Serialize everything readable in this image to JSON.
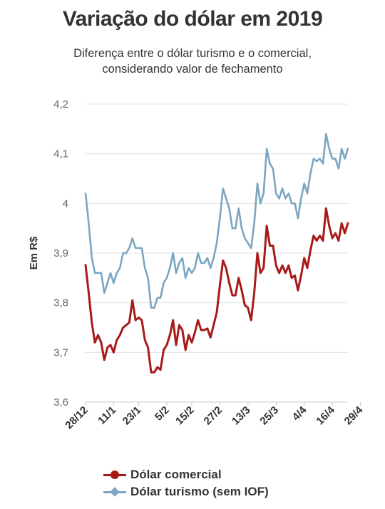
{
  "chart_data": {
    "type": "line",
    "title": "Variação do dólar em 2019",
    "subtitle_lines": [
      "Diferença entre o dólar turismo e o comercial,",
      "considerando valor de fechamento"
    ],
    "ylabel": "Em R$",
    "xlabel": "",
    "ylim": [
      3.6,
      4.2
    ],
    "yticks": [
      3.6,
      3.7,
      3.8,
      3.9,
      4.0,
      4.1,
      4.2
    ],
    "ytick_labels": [
      "3,6",
      "3,7",
      "3,8",
      "3,9",
      "4",
      "4,1",
      "4,2"
    ],
    "xtick_labels": [
      "28/12",
      "11/1",
      "23/1",
      "5/2",
      "15/2",
      "27/2",
      "13/3",
      "25/3",
      "4/4",
      "16/4",
      "29/4"
    ],
    "xtick_index": [
      0,
      9,
      17,
      26,
      34,
      43,
      52,
      61,
      70,
      79,
      88
    ],
    "grid": true,
    "legend_position": "bottom",
    "series": [
      {
        "name": "Dólar comercial",
        "color": "#a81a1a",
        "marker": "circle",
        "values": [
          3.876,
          3.82,
          3.76,
          3.72,
          3.735,
          3.72,
          3.685,
          3.71,
          3.715,
          3.7,
          3.725,
          3.735,
          3.75,
          3.755,
          3.76,
          3.805,
          3.765,
          3.77,
          3.765,
          3.725,
          3.71,
          3.66,
          3.66,
          3.67,
          3.665,
          3.705,
          3.715,
          3.735,
          3.765,
          3.715,
          3.755,
          3.745,
          3.705,
          3.735,
          3.72,
          3.74,
          3.765,
          3.745,
          3.745,
          3.748,
          3.73,
          3.755,
          3.78,
          3.835,
          3.885,
          3.87,
          3.84,
          3.815,
          3.815,
          3.85,
          3.825,
          3.795,
          3.79,
          3.765,
          3.82,
          3.9,
          3.86,
          3.87,
          3.955,
          3.915,
          3.915,
          3.875,
          3.86,
          3.875,
          3.86,
          3.875,
          3.85,
          3.855,
          3.825,
          3.855,
          3.89,
          3.87,
          3.905,
          3.935,
          3.925,
          3.935,
          3.925,
          3.99,
          3.955,
          3.93,
          3.94,
          3.925,
          3.96,
          3.94,
          3.96
        ]
      },
      {
        "name": "Dólar turismo (sem IOF)",
        "color": "#7aa6c2",
        "marker": "diamond",
        "values": [
          4.02,
          3.96,
          3.89,
          3.86,
          3.86,
          3.86,
          3.82,
          3.84,
          3.86,
          3.84,
          3.86,
          3.87,
          3.9,
          3.9,
          3.91,
          3.93,
          3.91,
          3.91,
          3.91,
          3.87,
          3.85,
          3.79,
          3.79,
          3.81,
          3.81,
          3.84,
          3.85,
          3.87,
          3.9,
          3.86,
          3.88,
          3.89,
          3.85,
          3.87,
          3.86,
          3.87,
          3.9,
          3.88,
          3.88,
          3.89,
          3.87,
          3.89,
          3.92,
          3.97,
          4.03,
          4.01,
          3.99,
          3.95,
          3.95,
          3.99,
          3.95,
          3.93,
          3.92,
          3.91,
          3.96,
          4.04,
          4.0,
          4.02,
          4.11,
          4.08,
          4.07,
          4.02,
          4.01,
          4.03,
          4.01,
          4.02,
          4.0,
          4.0,
          3.97,
          4.01,
          4.04,
          4.02,
          4.06,
          4.09,
          4.085,
          4.09,
          4.08,
          4.14,
          4.11,
          4.09,
          4.09,
          4.07,
          4.11,
          4.09,
          4.11
        ]
      }
    ]
  }
}
